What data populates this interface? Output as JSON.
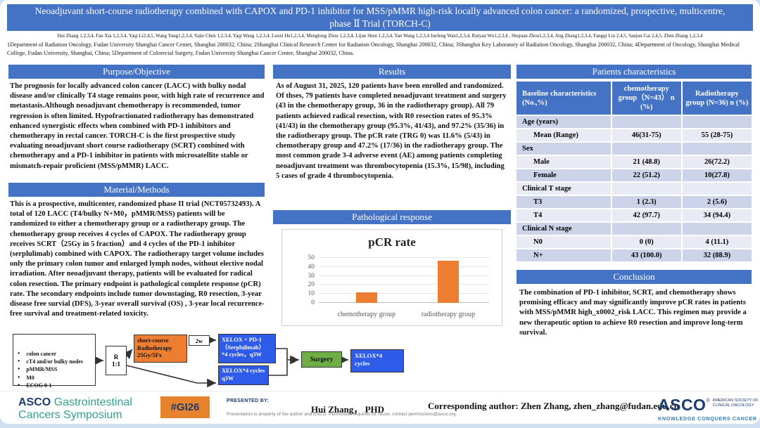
{
  "title": "Neoadjuvant short-course radiotherapy combined with CAPOX and PD-1 inhibitor for MSS/pMMR high-risk locally advanced colon cancer: a randomized, prospective, multicentre, phase Ⅱ Trial (TORCH-C)",
  "authors": "Hui Zhang 1,2,3,4, Fan Xia 1,2,3,4, Yaqi Li2,4,5, Wang Yang1,2,3,4, Yajie Chen 1,2,3,4, Yaqi Wang 1,2,3,4, Luoxi He1,2,3,4, Menglong Zhou 1,2,3,4, Lijun Shen 1,2,3,4, Yan Wang 1,2,3,4 Juefeng Wan1,2,3,4, Ruiyan Wu1,2,3,4 , Shujuan Zhou1,2,3,4, Jing Zhang1,2,3,4, Fangqi Liu 2,4,5, Sanjun Cai 2,4,5, Zhen Zhang 1,2,3,4",
  "affiliations": "1Department of Radiation Oncology, Fudan University Shanghai Cancer Center, Shanghai 200032, China; 2Shanghai Clinical Research Center for Radiation Oncology, Shanghai 200032, China; 3Shanghai Key Laboratory of Radiation Oncology, Shanghai 200032, China; 4Department of Oncology, Shanghai Medical College, Fudan University, Shanghai, China; 5Department of Colorectal Surgery, Fudan University Shanghai Cancer Center, Shanghai 200032, China.",
  "sections": {
    "purpose": {
      "title": "Purpose/Objective",
      "body": "The prognosis for locally advanced colon cancer (LACC) with bulky nodal disease and/or clinically T4 stage remains poor, with high rate of recurrence and metastasis.Although neoadjuvant chemotherapy is recommended, tumor regression is often limited. Hypofractionated radiotherapy has demonstrated enhanced synergistic effects when combined with PD-1 inhibitors and chemotherapy in rectal cancer. TORCH-C is the first prospective study evaluating neoadjuvant short course radiotherapy (SCRT) combined with chemotherapy and a PD-1 inhibitor in patients with microsatellite stable or mismatch-repair proficient (MSS/pMMR) LACC."
    },
    "methods": {
      "title": "Material/Methods",
      "body": "This is a prospective, multicenter, randomized phase II trial (NCT05732493). A total of 120 LACC (T4/bulky N+M0，pMMR/MSS) patients will be randomized to either a chemotherapy group or a radiotherapy group. The chemotherapy group receives 4 cycles of CAPOX. The radiotherapy group receives SCRT（25Gy in 5 fraction）and 4 cycles of the PD-1 inhibitor (serplulimab) combined with CAPOX. The radiotherapy target volume includes only the primary colon tumor and enlarged lymph nodes, without elective nodal irradiation. After neoadjuvant therapy, patients will be evaluated for radical colon resection. The primary endpoint is pathological complete response (pCR) rate. The secondary endpoints include tumor downstaging, R0 resection, 3-year disease free survial (DFS), 3-year overall survival (OS) , 3-year local recurrence-free survival and treatment-related toxicity."
    },
    "results": {
      "title": "Results",
      "body": "As of August 31, 2025, 120 patients have been enrolled and randomized. Of thses, 79 patients have completed neoadjuvant treatment and surgery (43 in the chemotherapy group, 36 in the radiotherapy group). All 79 patients achieved radical resection, with R0 resection rates of 95.3% (41/43) in the chemotherapy group (95.3%, 41/43), and 97.2% (35/36) in the radiotherapy group. The pCR rate (TRG 0) was 11.6% (5/43) in chemotherapy group and 47.2% (17/36) in the radiotherapy group. The most common grade 3-4 adverse event (AE) among patients completing neoadjuvant treatment was thrombocytopenia (15.3%, 15/98), including 5 cases of grade 4 thrombocytopenia."
    },
    "pathological": {
      "title": "Pathological response"
    },
    "patients": {
      "title": "Patients characteristics"
    },
    "conclusion": {
      "title": "Conclusion",
      "body": "The combination of PD-1 inhibitor, SCRT, and chemotherapy shows promising efficacy and may significantly improve pCR rates in patients with MSS/pMMR high_x0002_risk LACC. This regimen may provide a new therapeutic option to achieve R0 resection and improve long-term survival."
    }
  },
  "table": {
    "headers": [
      "Baseline characteristics (No.,%)",
      "chemotherapy group（N=43） n (%)",
      "Radiotherapy group (N=36) n (%)"
    ],
    "rows": [
      {
        "label": "Age (years)",
        "c1": "",
        "c2": "",
        "indent": false
      },
      {
        "label": "Mean (Range)",
        "c1": "46(31-75)",
        "c2": "55 (28-75)",
        "indent": true
      },
      {
        "label": "Sex",
        "c1": "",
        "c2": "",
        "indent": false
      },
      {
        "label": "Male",
        "c1": "21 (48.8)",
        "c2": "26(72.2)",
        "indent": true
      },
      {
        "label": "Female",
        "c1": "22 (51.2)",
        "c2": "10(27.8)",
        "indent": true
      },
      {
        "label": "Clinical T stage",
        "c1": "",
        "c2": "",
        "indent": false
      },
      {
        "label": "T3",
        "c1": "1 (2.3)",
        "c2": "2 (5.6)",
        "indent": true
      },
      {
        "label": "T4",
        "c1": "42 (97.7)",
        "c2": "34 (94.4)",
        "indent": true
      },
      {
        "label": "Clinical N stage",
        "c1": "",
        "c2": "",
        "indent": false
      },
      {
        "label": "N0",
        "c1": "0 (0)",
        "c2": "4 (11.1)",
        "indent": true
      },
      {
        "label": "N+",
        "c1": "43 (100.0)",
        "c2": "32 (88.9)",
        "indent": true
      }
    ]
  },
  "chart_data": {
    "type": "bar",
    "title": "pCR rate",
    "categories": [
      "chemotherapy group",
      "radiotherapy group"
    ],
    "values": [
      11.6,
      47.2
    ],
    "xlabel": "",
    "ylabel": "",
    "ylim": [
      0,
      50
    ],
    "ytick_step": 10,
    "bar_color": "#ED7D31",
    "grid": true,
    "legend": false
  },
  "flowchart": {
    "eligibility_items": [
      "colon cancer",
      "cT4 and/or bulky nodes",
      "pMMR/MSS",
      "M0",
      "ECOG 0-1",
      "N=120"
    ],
    "randomization": "R\n1:1",
    "scrt_box": "short-course\nRadiotherapy\n25Gy/5Fx",
    "interval_label": "2w",
    "arm1_box": "XELOX + PD-1\n（Serplulimab）\n*4 cycles，q3W",
    "arm2_box": "XELOX*4 cycles\nq3W",
    "surgery_box": "Surgery",
    "adjuvant_box": "XELOX*4\ncycles"
  },
  "footer": {
    "symposium_logo": {
      "asco": "ASCO",
      "name_line1": "Gastrointestinal",
      "name_line2": "Cancers Symposium"
    },
    "hashtag": "#GI26",
    "presented_by_label": "PRESENTED BY:",
    "presenter": "Hui Zhang，  PHD",
    "disclaimer": "Presentation is property of the author and ASCO. Permission required for reuse; contact permissions@asco.org.",
    "corresponding": "Corresponding author:  Zhen Zhang,  zhen_zhang@fudan.edu.cn",
    "asco_logo": {
      "asco": "ASCO",
      "society_line1": "AMERICAN SOCIETY OF",
      "society_line2": "CLINICAL ONCOLOGY",
      "tagline": "KNOWLEDGE CONQUERS CANCER"
    }
  },
  "colors": {
    "accent_blue": "#4472C4",
    "band_a": "#CDD4EA",
    "band_b": "#E9EBF4",
    "orange": "#ED7D31",
    "flow_blue": "#2E5BE8",
    "green": "#6FAD47",
    "badge_orange": "#E8832D",
    "navy": "#1B3A70",
    "teal": "#35A08D",
    "steel_blue": "#2E7FC0"
  }
}
